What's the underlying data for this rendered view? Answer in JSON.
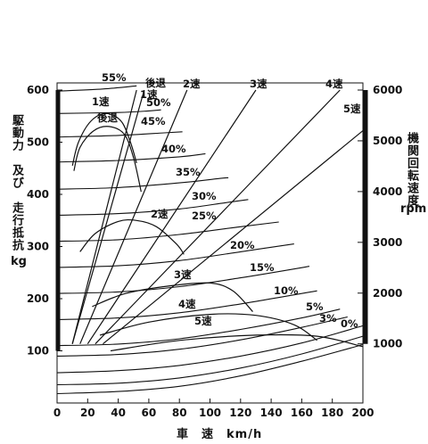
{
  "chart_data": {
    "type": "line",
    "xlabel": "車　速　km/h",
    "ylabel_left": "駆動力　及び　走行抵抗",
    "ylabel_left_unit": "kg",
    "ylabel_right": "機関回転速度",
    "ylabel_right_unit": "rpm",
    "xlim": [
      0,
      200
    ],
    "ylim_left": [
      0,
      600
    ],
    "ylim_right": [
      1000,
      6000
    ],
    "x_ticks": [
      "0",
      "20",
      "40",
      "60",
      "80",
      "100",
      "120",
      "140",
      "160",
      "180",
      "200"
    ],
    "y_ticks_left": [
      "100",
      "200",
      "300",
      "400",
      "500",
      "600"
    ],
    "y_ticks_right": [
      "1000",
      "2000",
      "3000",
      "4000",
      "5000",
      "6000"
    ],
    "grid": false,
    "gear_rpm_lines": [
      {
        "name": "後退",
        "points": [
          [
            10,
            1000
          ],
          [
            57,
            6000
          ]
        ]
      },
      {
        "name": "1速",
        "points": [
          [
            10,
            1000
          ],
          [
            52,
            6000
          ]
        ]
      },
      {
        "name": "2速",
        "points": [
          [
            15,
            1000
          ],
          [
            85,
            6000
          ]
        ]
      },
      {
        "name": "3速",
        "points": [
          [
            20,
            1000
          ],
          [
            130,
            6000
          ]
        ]
      },
      {
        "name": "4速",
        "points": [
          [
            25,
            1000
          ],
          [
            185,
            6000
          ]
        ]
      },
      {
        "name": "5速",
        "points": [
          [
            30,
            1000
          ],
          [
            200,
            5200
          ]
        ]
      }
    ],
    "traction_curves": [
      {
        "name": "後退",
        "points": [
          [
            11,
            445
          ],
          [
            15,
            490
          ],
          [
            24,
            522
          ],
          [
            34,
            530
          ],
          [
            44,
            515
          ],
          [
            50,
            470
          ],
          [
            55,
            405
          ]
        ]
      },
      {
        "name": "1速",
        "points": [
          [
            10,
            455
          ],
          [
            14,
            500
          ],
          [
            22,
            540
          ],
          [
            32,
            555
          ],
          [
            42,
            540
          ],
          [
            48,
            500
          ],
          [
            52,
            460
          ]
        ]
      },
      {
        "name": "2速",
        "points": [
          [
            15,
            290
          ],
          [
            25,
            325
          ],
          [
            40,
            348
          ],
          [
            52,
            350
          ],
          [
            65,
            338
          ],
          [
            78,
            305
          ],
          [
            83,
            285
          ]
        ]
      },
      {
        "name": "3速",
        "points": [
          [
            23,
            185
          ],
          [
            45,
            210
          ],
          [
            75,
            225
          ],
          [
            100,
            230
          ],
          [
            115,
            215
          ],
          [
            128,
            175
          ]
        ]
      },
      {
        "name": "4速",
        "points": [
          [
            28,
            130
          ],
          [
            60,
            155
          ],
          [
            100,
            170
          ],
          [
            130,
            168
          ],
          [
            155,
            150
          ],
          [
            170,
            120
          ]
        ]
      },
      {
        "name": "5速",
        "points": [
          [
            35,
            100
          ],
          [
            80,
            120
          ],
          [
            130,
            130
          ],
          [
            170,
            128
          ],
          [
            200,
            108
          ]
        ]
      }
    ],
    "resistance_curves": [
      {
        "name": "55%",
        "points": [
          [
            0,
            598
          ],
          [
            30,
            602
          ],
          [
            52,
            608
          ]
        ]
      },
      {
        "name": "50%",
        "points": [
          [
            0,
            555
          ],
          [
            40,
            557
          ],
          [
            60,
            560
          ],
          [
            68,
            562
          ]
        ]
      },
      {
        "name": "45%",
        "points": [
          [
            0,
            510
          ],
          [
            40,
            513
          ],
          [
            70,
            518
          ],
          [
            82,
            520
          ]
        ]
      },
      {
        "name": "40%",
        "points": [
          [
            0,
            462
          ],
          [
            40,
            465
          ],
          [
            80,
            472
          ],
          [
            97,
            478
          ]
        ]
      },
      {
        "name": "35%",
        "points": [
          [
            0,
            410
          ],
          [
            40,
            413
          ],
          [
            80,
            422
          ],
          [
            105,
            430
          ],
          [
            112,
            432
          ]
        ]
      },
      {
        "name": "30%",
        "points": [
          [
            0,
            360
          ],
          [
            40,
            363
          ],
          [
            80,
            372
          ],
          [
            110,
            384
          ],
          [
            125,
            390
          ]
        ]
      },
      {
        "name": "25%",
        "points": [
          [
            0,
            310
          ],
          [
            40,
            313
          ],
          [
            80,
            323
          ],
          [
            120,
            338
          ],
          [
            145,
            347
          ]
        ]
      },
      {
        "name": "20%",
        "points": [
          [
            0,
            260
          ],
          [
            40,
            263
          ],
          [
            80,
            273
          ],
          [
            120,
            290
          ],
          [
            155,
            305
          ]
        ]
      },
      {
        "name": "15%",
        "points": [
          [
            0,
            210
          ],
          [
            40,
            213
          ],
          [
            80,
            223
          ],
          [
            120,
            240
          ],
          [
            165,
            262
          ]
        ]
      },
      {
        "name": "10%",
        "points": [
          [
            0,
            160
          ],
          [
            40,
            163
          ],
          [
            80,
            173
          ],
          [
            120,
            190
          ],
          [
            170,
            215
          ]
        ]
      },
      {
        "name": "5%",
        "points": [
          [
            0,
            110
          ],
          [
            40,
            113
          ],
          [
            80,
            123
          ],
          [
            120,
            141
          ],
          [
            160,
            163
          ],
          [
            185,
            180
          ]
        ]
      },
      {
        "name": "3%",
        "points": [
          [
            0,
            90
          ],
          [
            40,
            93
          ],
          [
            80,
            103
          ],
          [
            120,
            121
          ],
          [
            160,
            145
          ],
          [
            190,
            165
          ]
        ]
      },
      {
        "name": "0%",
        "points": [
          [
            0,
            58
          ],
          [
            40,
            62
          ],
          [
            80,
            72
          ],
          [
            120,
            90
          ],
          [
            160,
            115
          ],
          [
            200,
            148
          ]
        ]
      },
      {
        "name": "",
        "points": [
          [
            0,
            35
          ],
          [
            40,
            38
          ],
          [
            80,
            48
          ],
          [
            120,
            67
          ],
          [
            160,
            94
          ],
          [
            200,
            128
          ]
        ]
      },
      {
        "name": "",
        "points": [
          [
            0,
            18
          ],
          [
            40,
            22
          ],
          [
            80,
            32
          ],
          [
            120,
            52
          ],
          [
            160,
            80
          ],
          [
            200,
            112
          ]
        ]
      }
    ]
  }
}
